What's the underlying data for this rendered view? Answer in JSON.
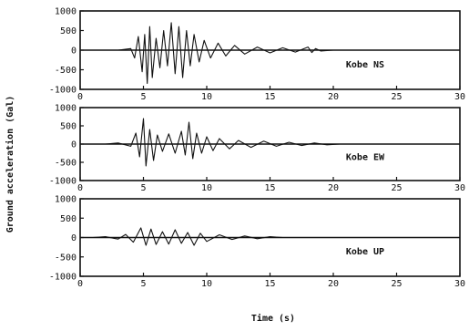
{
  "chart_data": [
    {
      "type": "line",
      "name": "Kobe NS",
      "label": "Kobe NS",
      "xlim": [
        0,
        30
      ],
      "ylim": [
        -1000,
        1000
      ],
      "yticks": [
        "1000",
        "500",
        "0",
        "-500",
        "-1000"
      ],
      "xticks": [
        "0",
        "5",
        "10",
        "15",
        "20",
        "25",
        "30"
      ],
      "x": [
        0,
        3,
        4,
        4.3,
        4.6,
        4.9,
        5.1,
        5.3,
        5.5,
        5.7,
        6.0,
        6.3,
        6.6,
        6.9,
        7.2,
        7.5,
        7.8,
        8.1,
        8.4,
        8.7,
        9.0,
        9.4,
        9.8,
        10.3,
        10.9,
        11.5,
        12.2,
        13.0,
        14.0,
        15.0,
        16.0,
        17.0,
        18.0,
        18.3,
        18.6,
        19.0,
        20.0,
        30.0
      ],
      "y": [
        0,
        0,
        40,
        -200,
        350,
        -550,
        400,
        -850,
        600,
        -700,
        300,
        -450,
        500,
        -400,
        700,
        -600,
        600,
        -700,
        500,
        -400,
        400,
        -300,
        250,
        -200,
        180,
        -150,
        120,
        -100,
        80,
        -70,
        60,
        -50,
        80,
        -60,
        40,
        -20,
        0,
        0
      ]
    },
    {
      "type": "line",
      "name": "Kobe EW",
      "label": "Kobe EW",
      "xlim": [
        0,
        30
      ],
      "ylim": [
        -1000,
        1000
      ],
      "yticks": [
        "1000",
        "500",
        "0",
        "-500",
        "-1000"
      ],
      "xticks": [
        "0",
        "5",
        "10",
        "15",
        "20",
        "25",
        "30"
      ],
      "x": [
        0,
        2,
        3,
        4,
        4.4,
        4.7,
        5.0,
        5.2,
        5.5,
        5.8,
        6.1,
        6.5,
        7.0,
        7.5,
        8.0,
        8.3,
        8.6,
        8.9,
        9.2,
        9.6,
        10.0,
        10.5,
        11.0,
        11.8,
        12.5,
        13.5,
        14.5,
        15.5,
        16.5,
        17.5,
        18.5,
        19.5,
        20.5,
        30.0
      ],
      "y": [
        0,
        0,
        30,
        -60,
        300,
        -350,
        700,
        -600,
        400,
        -450,
        250,
        -200,
        280,
        -250,
        350,
        -300,
        600,
        -400,
        300,
        -250,
        200,
        -180,
        150,
        -130,
        100,
        -90,
        80,
        -60,
        50,
        -40,
        30,
        -20,
        0,
        0
      ]
    },
    {
      "type": "line",
      "name": "Kobe UP",
      "label": "Kobe UP",
      "xlim": [
        0,
        30
      ],
      "ylim": [
        -1000,
        1000
      ],
      "yticks": [
        "1000",
        "500",
        "0",
        "-500",
        "-1000"
      ],
      "xticks": [
        "0",
        "5",
        "10",
        "15",
        "20",
        "25",
        "30"
      ],
      "x": [
        0,
        1,
        2,
        3,
        3.6,
        4.2,
        4.8,
        5.2,
        5.6,
        6.0,
        6.5,
        7.0,
        7.5,
        8.0,
        8.5,
        9.0,
        9.5,
        10.0,
        11.0,
        12.0,
        13.0,
        14.0,
        15.0,
        16.0,
        17.0,
        30.0
      ],
      "y": [
        0,
        0,
        20,
        -40,
        80,
        -120,
        250,
        -200,
        220,
        -180,
        150,
        -170,
        200,
        -150,
        130,
        -200,
        110,
        -100,
        70,
        -50,
        40,
        -30,
        20,
        0,
        0,
        0
      ]
    }
  ],
  "ylabel": "Ground acceleration (Gal)",
  "xlabel": "Time (s)",
  "colors": {
    "line": "#111111",
    "frame": "#111111",
    "background": "#ffffff"
  }
}
